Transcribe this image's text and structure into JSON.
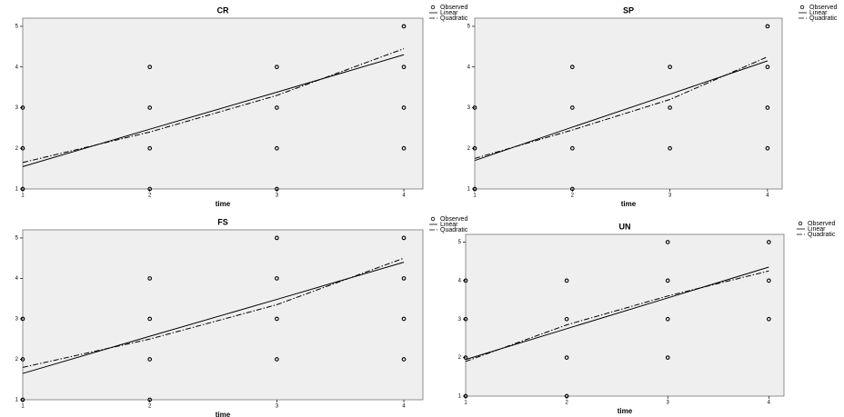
{
  "chart_data": [
    {
      "type": "scatter",
      "title": "CR",
      "x_label": "time",
      "xlim": [
        1,
        4.15
      ],
      "ylim": [
        1,
        5.2
      ],
      "xticks": [
        1,
        2,
        3,
        4
      ],
      "yticks": [
        1,
        2,
        3,
        4,
        5
      ],
      "series": [
        {
          "name": "Observed",
          "color": "#000000",
          "style": "circle",
          "x": [
            1,
            1,
            1,
            2,
            2,
            2,
            2,
            3,
            3,
            3,
            3,
            4,
            4,
            4,
            4
          ],
          "values": [
            1,
            2,
            3,
            1,
            2,
            3,
            4,
            1,
            2,
            3,
            4,
            2,
            3,
            4,
            5
          ]
        },
        {
          "name": "Linear",
          "color": "#000000",
          "style": "solid",
          "x": [
            1,
            2,
            3,
            4
          ],
          "values": [
            1.55,
            2.47,
            3.38,
            4.3
          ]
        },
        {
          "name": "Quadratic",
          "color": "#000000",
          "style": "dash-dot",
          "x": [
            1,
            2,
            3,
            4
          ],
          "values": [
            1.65,
            2.4,
            3.3,
            4.45
          ]
        }
      ]
    },
    {
      "type": "scatter",
      "title": "SP",
      "x_label": "time",
      "xlim": [
        1,
        4.15
      ],
      "ylim": [
        1,
        5.2
      ],
      "xticks": [
        1,
        2,
        3,
        4
      ],
      "yticks": [
        1,
        2,
        3,
        4,
        5
      ],
      "series": [
        {
          "name": "Observed",
          "color": "#000000",
          "style": "circle",
          "x": [
            1,
            1,
            1,
            2,
            2,
            2,
            2,
            3,
            3,
            3,
            4,
            4,
            4,
            4
          ],
          "values": [
            1,
            2,
            3,
            1,
            2,
            3,
            4,
            2,
            3,
            4,
            2,
            3,
            4,
            5
          ]
        },
        {
          "name": "Linear",
          "color": "#000000",
          "style": "solid",
          "x": [
            1,
            2,
            3,
            4
          ],
          "values": [
            1.7,
            2.52,
            3.33,
            4.15
          ]
        },
        {
          "name": "Quadratic",
          "color": "#000000",
          "style": "dash-dot",
          "x": [
            1,
            2,
            3,
            4
          ],
          "values": [
            1.75,
            2.45,
            3.2,
            4.25
          ]
        }
      ]
    },
    {
      "type": "scatter",
      "title": "FS",
      "x_label": "time",
      "xlim": [
        1,
        4.15
      ],
      "ylim": [
        1,
        5.2
      ],
      "xticks": [
        1,
        2,
        3,
        4
      ],
      "yticks": [
        1,
        2,
        3,
        4,
        5
      ],
      "series": [
        {
          "name": "Observed",
          "color": "#000000",
          "style": "circle",
          "x": [
            1,
            1,
            1,
            2,
            2,
            2,
            2,
            3,
            3,
            3,
            3,
            4,
            4,
            4,
            4
          ],
          "values": [
            1,
            2,
            3,
            1,
            2,
            3,
            4,
            2,
            3,
            4,
            5,
            2,
            3,
            4,
            5
          ]
        },
        {
          "name": "Linear",
          "color": "#000000",
          "style": "solid",
          "x": [
            1,
            2,
            3,
            4
          ],
          "values": [
            1.65,
            2.57,
            3.48,
            4.4
          ]
        },
        {
          "name": "Quadratic",
          "color": "#000000",
          "style": "dash-dot",
          "x": [
            1,
            2,
            3,
            4
          ],
          "values": [
            1.8,
            2.5,
            3.35,
            4.5
          ]
        }
      ]
    },
    {
      "type": "scatter",
      "title": "UN",
      "x_label": "time",
      "xlim": [
        1,
        4.15
      ],
      "ylim": [
        1,
        5.2
      ],
      "xticks": [
        1,
        2,
        3,
        4
      ],
      "yticks": [
        1,
        2,
        3,
        4,
        5
      ],
      "series": [
        {
          "name": "Observed",
          "color": "#000000",
          "style": "circle",
          "x": [
            1,
            1,
            1,
            1,
            2,
            2,
            2,
            2,
            3,
            3,
            3,
            3,
            4,
            4,
            4
          ],
          "values": [
            1,
            2,
            3,
            4,
            1,
            2,
            3,
            4,
            2,
            3,
            4,
            5,
            3,
            4,
            5
          ]
        },
        {
          "name": "Linear",
          "color": "#000000",
          "style": "solid",
          "x": [
            1,
            2,
            3,
            4
          ],
          "values": [
            1.95,
            2.75,
            3.55,
            4.35
          ]
        },
        {
          "name": "Quadratic",
          "color": "#000000",
          "style": "dash-dot",
          "x": [
            1,
            2,
            3,
            4
          ],
          "values": [
            1.9,
            2.85,
            3.6,
            4.25
          ]
        }
      ]
    }
  ]
}
